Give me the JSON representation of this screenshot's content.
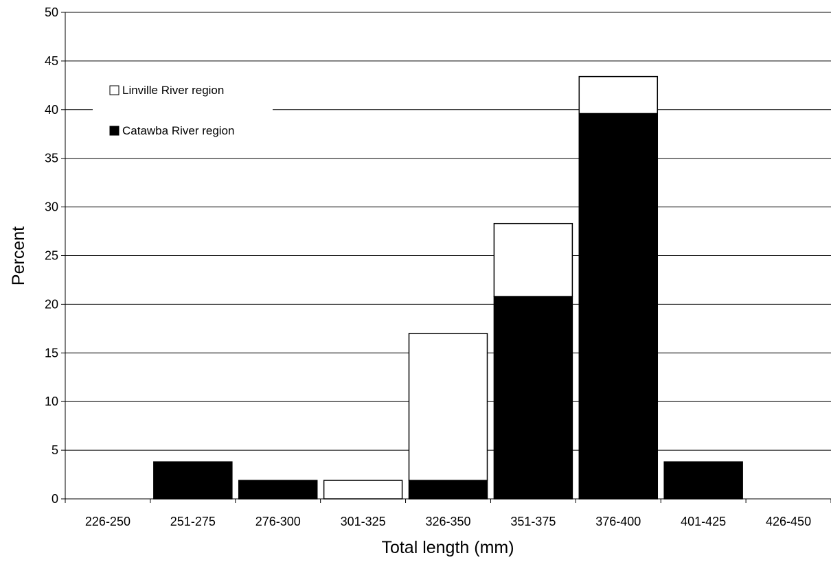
{
  "chart_data": {
    "type": "bar",
    "stacked": true,
    "categories": [
      "226-250",
      "251-275",
      "276-300",
      "301-325",
      "326-350",
      "351-375",
      "376-400",
      "401-425",
      "426-450"
    ],
    "series": [
      {
        "name": "Catawba River region",
        "color": "#000000",
        "values": [
          0,
          3.8,
          1.9,
          0,
          1.9,
          20.8,
          39.6,
          3.8,
          0
        ]
      },
      {
        "name": "Linville River region",
        "color": "#ffffff",
        "values": [
          0,
          0,
          0,
          1.9,
          15.1,
          7.5,
          3.8,
          0,
          0
        ]
      }
    ],
    "xlabel": "Total length (mm)",
    "ylabel": "Percent",
    "ylim": [
      0,
      50
    ],
    "yticks": [
      0,
      5,
      10,
      15,
      20,
      25,
      30,
      35,
      40,
      45,
      50
    ],
    "grid": true,
    "legend": {
      "placement": "top-left",
      "entries": [
        "Linville River region",
        "Catawba River region"
      ]
    }
  }
}
